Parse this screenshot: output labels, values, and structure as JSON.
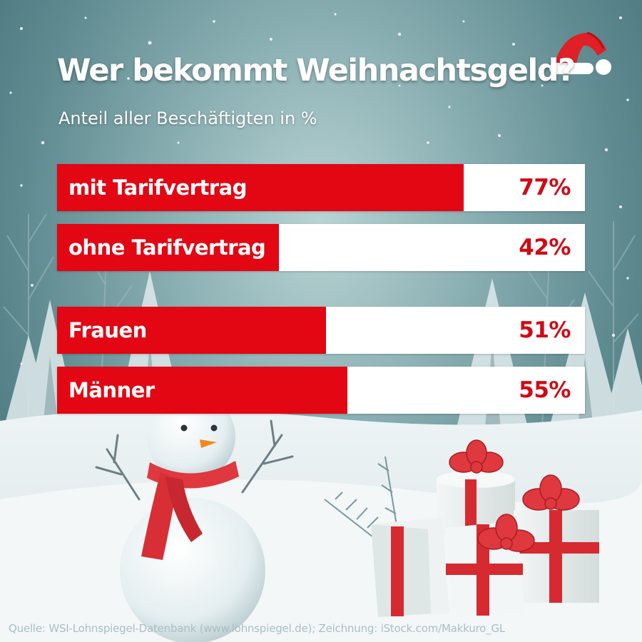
{
  "header": {
    "title": "Wer bekommt Weihnachtsgeld?",
    "subtitle": "Anteil aller Beschäftigten in %"
  },
  "chart_data": {
    "type": "bar",
    "orientation": "horizontal",
    "categories": [
      "mit Tarifvertrag",
      "ohne Tarifvertrag",
      "Frauen",
      "Männer"
    ],
    "values": [
      77,
      42,
      51,
      55
    ],
    "value_labels": [
      "77%",
      "42%",
      "51%",
      "55%"
    ],
    "xlim": [
      0,
      100
    ],
    "title": "Wer bekommt Weihnachtsgeld?",
    "subtitle": "Anteil aller Beschäftigten in %",
    "grid": false,
    "legend": "none"
  },
  "footer": {
    "source": "Quelle: WSI-Lohnspiegel-Datenbank (www.lohnspiegel.de); Zeichnung: iStock.com/Makkuro_GL"
  },
  "colors": {
    "bar_fill": "#e30613",
    "bar_track": "#ffffff",
    "value_text": "#d10a14",
    "title_text": "#ffffff"
  },
  "icons": [
    "santa-hat-icon",
    "snowman-illustration",
    "gift-boxes-illustration",
    "snowy-trees-illustration"
  ]
}
